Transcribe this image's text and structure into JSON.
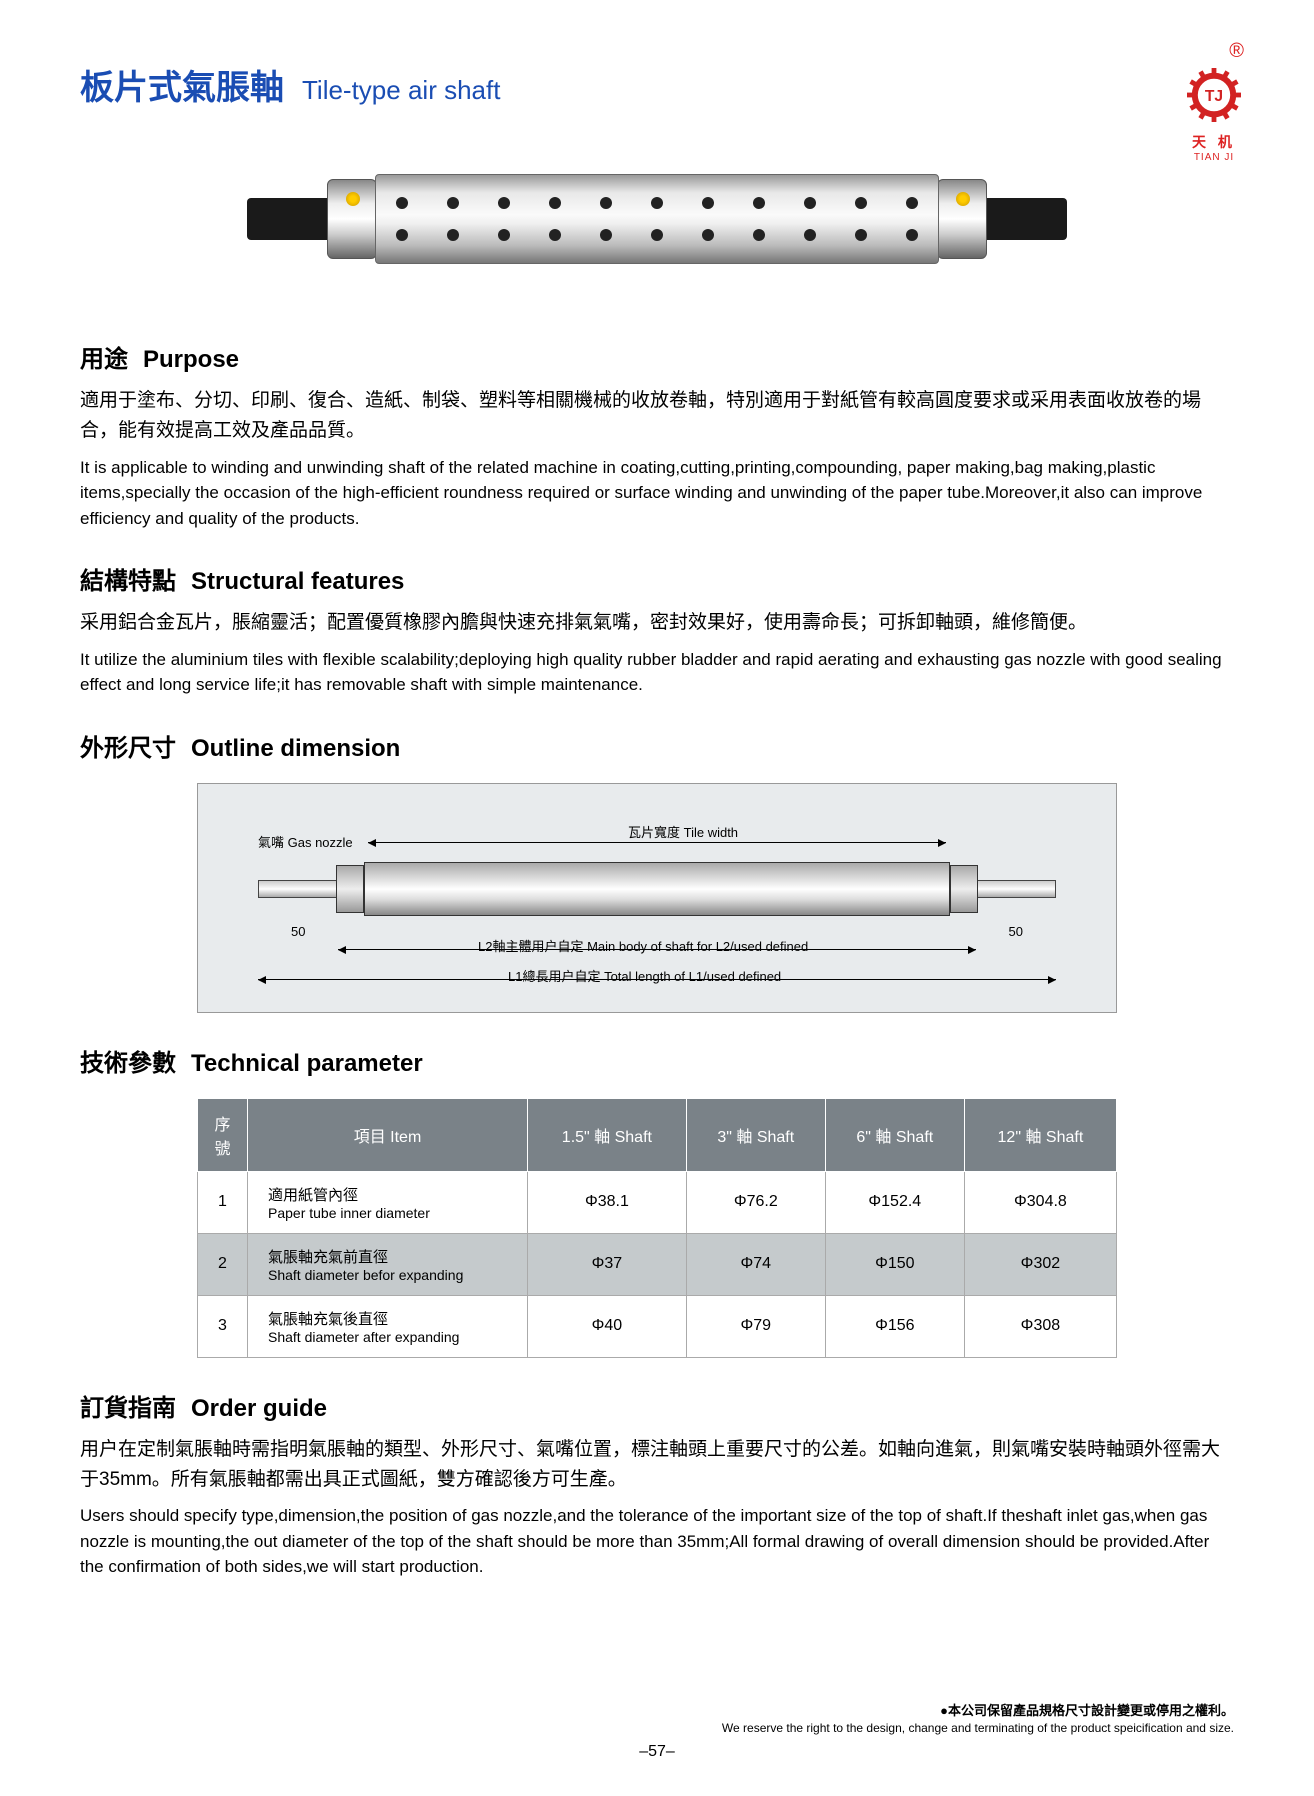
{
  "logo": {
    "reg_mark": "®",
    "letters": "TJ",
    "cn": "天 机",
    "en": "TIAN JI",
    "gear_color": "#d22222",
    "text_color": "#d22222"
  },
  "title": {
    "cn": "板片式氣脹軸",
    "en": "Tile-type air shaft",
    "color": "#1a4db3"
  },
  "product_image": {
    "holes_per_row": 11,
    "body_gradient": [
      "#999",
      "#e8e8e8",
      "#fafafa",
      "#f0f0f0",
      "#bbb",
      "#777"
    ],
    "end_color": "#1a1a1a",
    "screw_color": "#ffcc00"
  },
  "sections": {
    "purpose": {
      "head_cn": "用途",
      "head_en": "Purpose",
      "body_cn": "適用于塗布、分切、印刷、復合、造紙、制袋、塑料等相關機械的收放卷軸，特別適用于對紙管有較高圓度要求或采用表面收放卷的場合，能有效提高工效及產品品質。",
      "body_en": "It is applicable to winding and unwinding shaft of the related machine in coating,cutting,printing,compounding, paper making,bag making,plastic items,specially the occasion of the high-efficient roundness required or surface winding and unwinding of the paper tube.Moreover,it also can improve efficiency and quality of the products."
    },
    "features": {
      "head_cn": "結構特點",
      "head_en": "Structural features",
      "body_cn": "采用鋁合金瓦片，脹縮靈活；配置優質橡膠內膽與快速充排氣氣嘴，密封效果好，使用壽命長；可拆卸軸頭，維修簡便。",
      "body_en": "It utilize the aluminium tiles with flexible scalability;deploying high quality rubber bladder and rapid aerating and exhausting gas nozzle with good sealing effect and long service life;it has removable shaft with simple maintenance."
    },
    "dimension": {
      "head_cn": "外形尺寸",
      "head_en": "Outline dimension"
    },
    "tech": {
      "head_cn": "技術參數",
      "head_en": "Technical parameter"
    },
    "order": {
      "head_cn": "訂貨指南",
      "head_en": "Order guide",
      "body_cn": "用户在定制氣脹軸時需指明氣脹軸的類型、外形尺寸、氣嘴位置，標注軸頭上重要尺寸的公差。如軸向進氣，則氣嘴安裝時軸頭外徑需大于35mm。所有氣脹軸都需出具正式圖紙，雙方確認後方可生產。",
      "body_en": "Users should specify type,dimension,the position of gas nozzle,and the tolerance of the important size of the top of shaft.If theshaft inlet gas,when gas nozzle is mounting,the out diameter of the top of the shaft should be more than 35mm;All formal drawing of overall dimension should be provided.After the confirmation of both sides,we will start production."
    }
  },
  "diagram": {
    "bg_color": "#e8ebed",
    "labels": {
      "gas_nozzle": "氣嘴 Gas nozzle",
      "tile_width": "瓦片寬度 Tile width",
      "l2": "L2軸主體用户自定 Main body of shaft for L2/used defined",
      "l1": "L1總長用户自定  Total length of L1/used defined",
      "fifty_l": "50",
      "fifty_r": "50"
    }
  },
  "table": {
    "header_bg": "#7a8288",
    "header_fg": "#ffffff",
    "row_even_bg": "#c5cacc",
    "row_odd_bg": "#ffffff",
    "columns": [
      "序號",
      "項目 Item",
      "1.5\" 軸 Shaft",
      "3\" 軸 Shaft",
      "6\" 軸 Shaft",
      "12\" 軸 Shaft"
    ],
    "rows": [
      {
        "num": "1",
        "item_cn": "適用紙管內徑",
        "item_en": "Paper tube inner diameter",
        "v": [
          "Φ38.1",
          "Φ76.2",
          "Φ152.4",
          "Φ304.8"
        ]
      },
      {
        "num": "2",
        "item_cn": "氣脹軸充氣前直徑",
        "item_en": "Shaft diameter befor expanding",
        "v": [
          "Φ37",
          "Φ74",
          "Φ150",
          "Φ302"
        ]
      },
      {
        "num": "3",
        "item_cn": "氣脹軸充氣後直徑",
        "item_en": "Shaft diameter after expanding",
        "v": [
          "Φ40",
          "Φ79",
          "Φ156",
          "Φ308"
        ]
      }
    ]
  },
  "footer": {
    "note_cn": "●本公司保留產品規格尺寸設計變更或停用之權利。",
    "note_en": "We reserve the right to the design, change and terminating of the product speicification and size.",
    "page": "–57–"
  }
}
